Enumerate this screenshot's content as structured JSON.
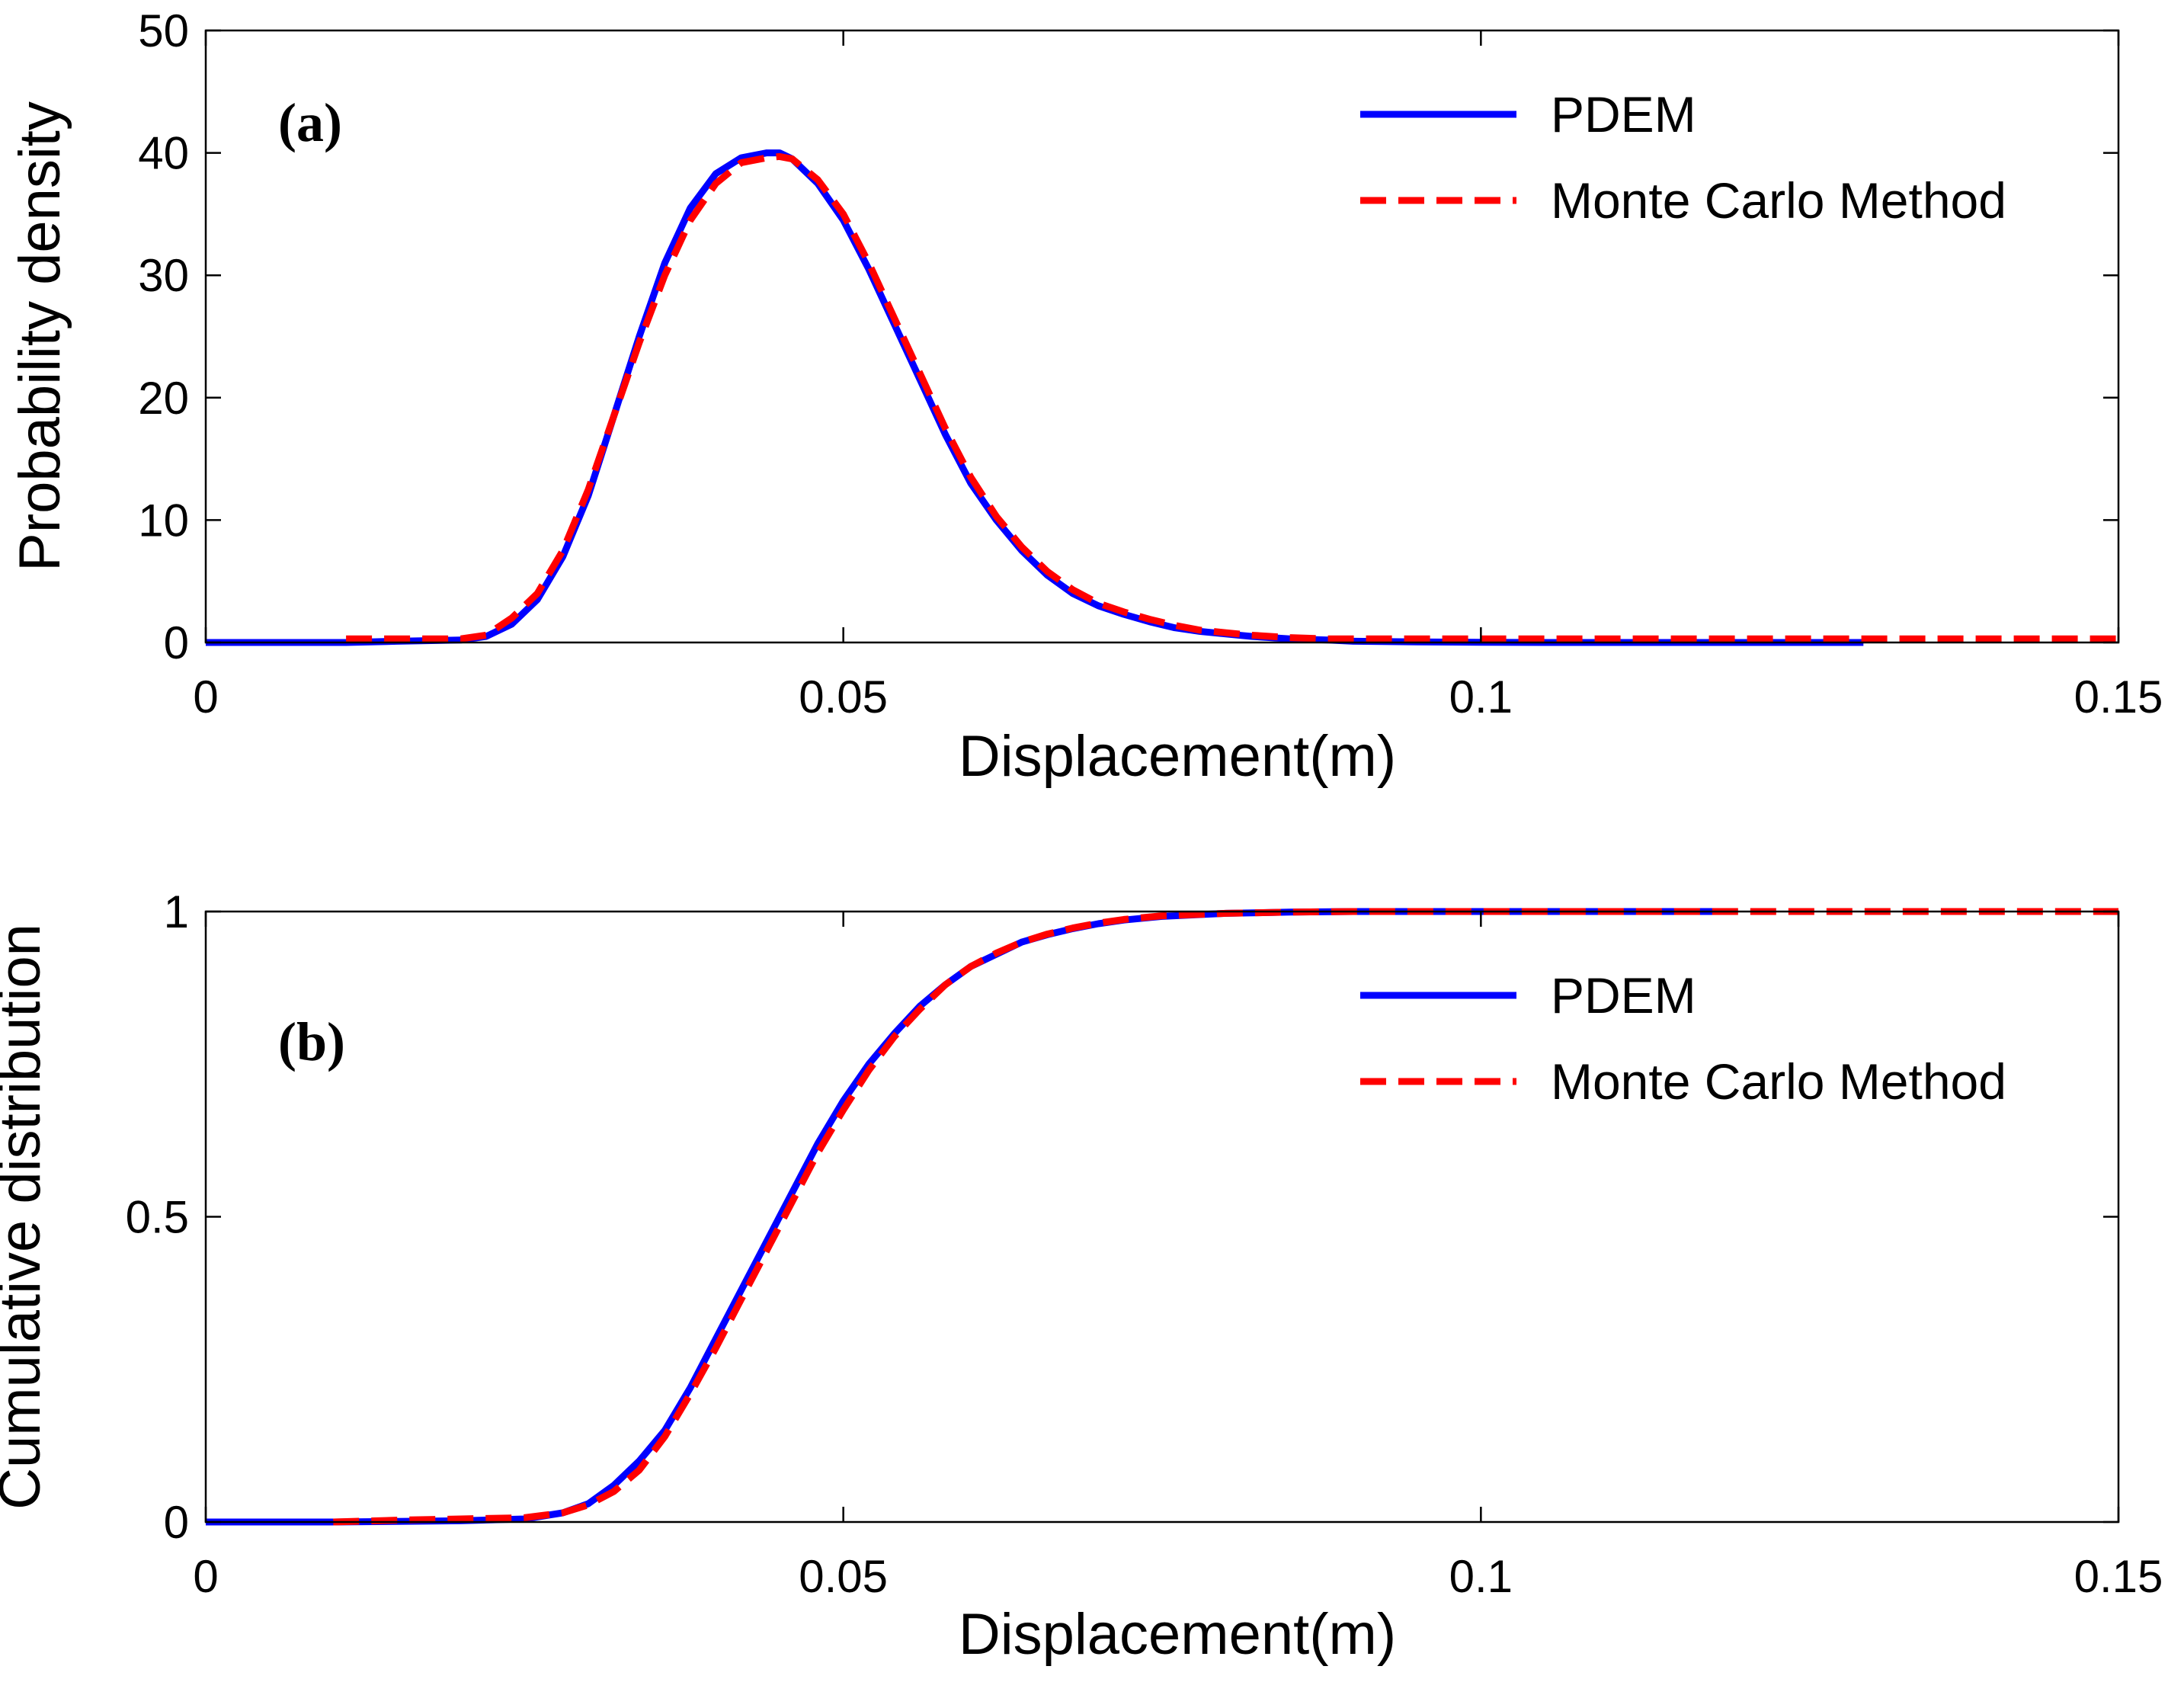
{
  "chart_data": [
    {
      "type": "line",
      "panel_label": "(a)",
      "xlabel": "Displacement(m)",
      "ylabel": "Probability density",
      "xlim": [
        0,
        0.15
      ],
      "ylim": [
        0,
        50
      ],
      "xticks": [
        0,
        0.05,
        0.1,
        0.15
      ],
      "xtick_labels": [
        "0",
        "0.05",
        "0.1",
        "0.15"
      ],
      "yticks": [
        0,
        10,
        20,
        30,
        40,
        50
      ],
      "ytick_labels": [
        "0",
        "10",
        "20",
        "30",
        "40",
        "50"
      ],
      "grid": false,
      "legend_position": "top-right",
      "series": [
        {
          "name": "PDEM",
          "color": "#0000ff",
          "style": "solid",
          "x": [
            0,
            0.011,
            0.015,
            0.02,
            0.022,
            0.024,
            0.026,
            0.028,
            0.03,
            0.032,
            0.034,
            0.036,
            0.038,
            0.04,
            0.042,
            0.044,
            0.045,
            0.046,
            0.048,
            0.05,
            0.052,
            0.054,
            0.056,
            0.058,
            0.06,
            0.062,
            0.064,
            0.066,
            0.068,
            0.07,
            0.072,
            0.074,
            0.076,
            0.078,
            0.08,
            0.082,
            0.085,
            0.088,
            0.09,
            0.095,
            0.1,
            0.105,
            0.11,
            0.115,
            0.12,
            0.125,
            0.13
          ],
          "y": [
            0,
            0,
            0.1,
            0.2,
            0.5,
            1.5,
            3.5,
            7,
            12,
            18.5,
            25,
            31,
            35.5,
            38.3,
            39.6,
            40,
            40,
            39.5,
            37.5,
            34.5,
            30.5,
            26,
            21.5,
            17,
            13,
            10,
            7.5,
            5.5,
            4,
            3,
            2.3,
            1.7,
            1.2,
            0.9,
            0.7,
            0.5,
            0.3,
            0.2,
            0.1,
            0.05,
            0.02,
            0,
            0,
            0,
            0,
            0,
            0
          ]
        },
        {
          "name": "Monte Carlo Method",
          "color": "#ff0000",
          "style": "dashed",
          "x": [
            0.011,
            0.015,
            0.02,
            0.022,
            0.024,
            0.026,
            0.028,
            0.03,
            0.032,
            0.034,
            0.036,
            0.038,
            0.04,
            0.042,
            0.044,
            0.045,
            0.046,
            0.048,
            0.05,
            0.052,
            0.054,
            0.056,
            0.058,
            0.06,
            0.062,
            0.064,
            0.066,
            0.068,
            0.07,
            0.072,
            0.074,
            0.076,
            0.078,
            0.08,
            0.082,
            0.085,
            0.088,
            0.09,
            0.1,
            0.11,
            0.12,
            0.13,
            0.14,
            0.15
          ],
          "y": [
            0.3,
            0.3,
            0.3,
            0.6,
            2,
            4,
            7.5,
            12.5,
            18.5,
            24.5,
            30,
            34.5,
            37.5,
            39.2,
            39.6,
            39.7,
            39.5,
            37.8,
            35,
            31,
            26.5,
            22,
            17.5,
            13.5,
            10.3,
            7.8,
            5.8,
            4.3,
            3.2,
            2.5,
            1.9,
            1.4,
            1,
            0.8,
            0.6,
            0.4,
            0.3,
            0.3,
            0.3,
            0.3,
            0.3,
            0.3,
            0.3,
            0.3
          ]
        }
      ]
    },
    {
      "type": "line",
      "panel_label": "(b)",
      "xlabel": "Displacement(m)",
      "ylabel": "Cumulative distribution",
      "xlim": [
        0,
        0.15
      ],
      "ylim": [
        0,
        1
      ],
      "xticks": [
        0,
        0.05,
        0.1,
        0.15
      ],
      "xtick_labels": [
        "0",
        "0.05",
        "0.1",
        "0.15"
      ],
      "yticks": [
        0,
        0.5,
        1
      ],
      "ytick_labels": [
        "0",
        "0.5",
        "1"
      ],
      "grid": false,
      "legend_position": "top-right",
      "series": [
        {
          "name": "PDEM",
          "color": "#0000ff",
          "style": "solid",
          "x": [
            0,
            0.01,
            0.02,
            0.025,
            0.028,
            0.03,
            0.032,
            0.034,
            0.036,
            0.038,
            0.04,
            0.042,
            0.044,
            0.046,
            0.048,
            0.05,
            0.052,
            0.054,
            0.056,
            0.058,
            0.06,
            0.062,
            0.064,
            0.066,
            0.068,
            0.07,
            0.072,
            0.075,
            0.08,
            0.085,
            0.09,
            0.1,
            0.11,
            0.12
          ],
          "y": [
            0,
            0,
            0.002,
            0.005,
            0.015,
            0.03,
            0.06,
            0.1,
            0.15,
            0.22,
            0.3,
            0.38,
            0.46,
            0.54,
            0.62,
            0.69,
            0.75,
            0.8,
            0.845,
            0.88,
            0.91,
            0.93,
            0.95,
            0.962,
            0.972,
            0.98,
            0.986,
            0.992,
            0.997,
            0.999,
            1,
            1,
            1,
            1
          ]
        },
        {
          "name": "Monte Carlo Method",
          "color": "#ff0000",
          "style": "dashed",
          "x": [
            0.01,
            0.015,
            0.02,
            0.025,
            0.028,
            0.03,
            0.032,
            0.034,
            0.036,
            0.038,
            0.04,
            0.042,
            0.044,
            0.046,
            0.048,
            0.05,
            0.052,
            0.054,
            0.056,
            0.058,
            0.06,
            0.062,
            0.064,
            0.066,
            0.068,
            0.07,
            0.072,
            0.075,
            0.08,
            0.085,
            0.09,
            0.1,
            0.11,
            0.12,
            0.13,
            0.14,
            0.15
          ],
          "y": [
            0,
            0.003,
            0.005,
            0.007,
            0.015,
            0.028,
            0.05,
            0.085,
            0.14,
            0.21,
            0.285,
            0.365,
            0.445,
            0.525,
            0.605,
            0.675,
            0.74,
            0.795,
            0.84,
            0.88,
            0.91,
            0.932,
            0.95,
            0.963,
            0.973,
            0.981,
            0.987,
            0.993,
            0.997,
            0.999,
            1,
            1,
            1,
            1,
            1,
            1,
            1
          ]
        }
      ]
    }
  ]
}
